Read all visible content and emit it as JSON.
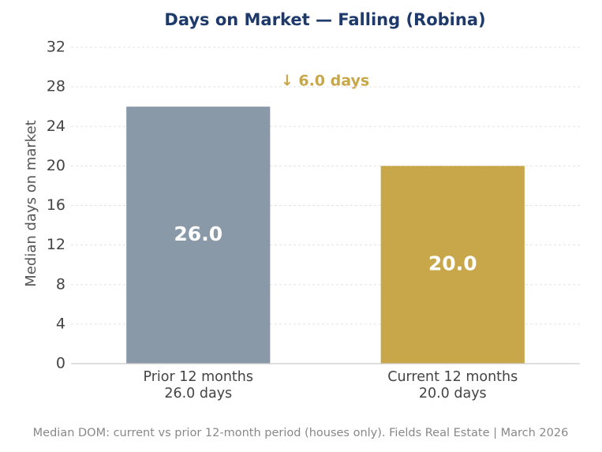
{
  "chart_data": {
    "type": "bar",
    "title": "Days on Market — Falling (Robina)",
    "categories": [
      "Prior 12 months\n26.0 days",
      "Current 12 months\n20.0 days"
    ],
    "values": [
      26,
      20
    ],
    "value_labels": [
      "26.0",
      "20.0"
    ],
    "colors": [
      "#8a99a8",
      "#c8a74a"
    ],
    "ylabel": "Median days on market",
    "ylim": [
      0,
      32
    ],
    "yticks": [
      0,
      4,
      8,
      12,
      16,
      20,
      24,
      28,
      32
    ],
    "grid": true,
    "annotation": "↓ 6.0 days",
    "footer": "Median DOM: current vs prior 12-month period (houses only). Fields Real Estate | March 2026"
  }
}
